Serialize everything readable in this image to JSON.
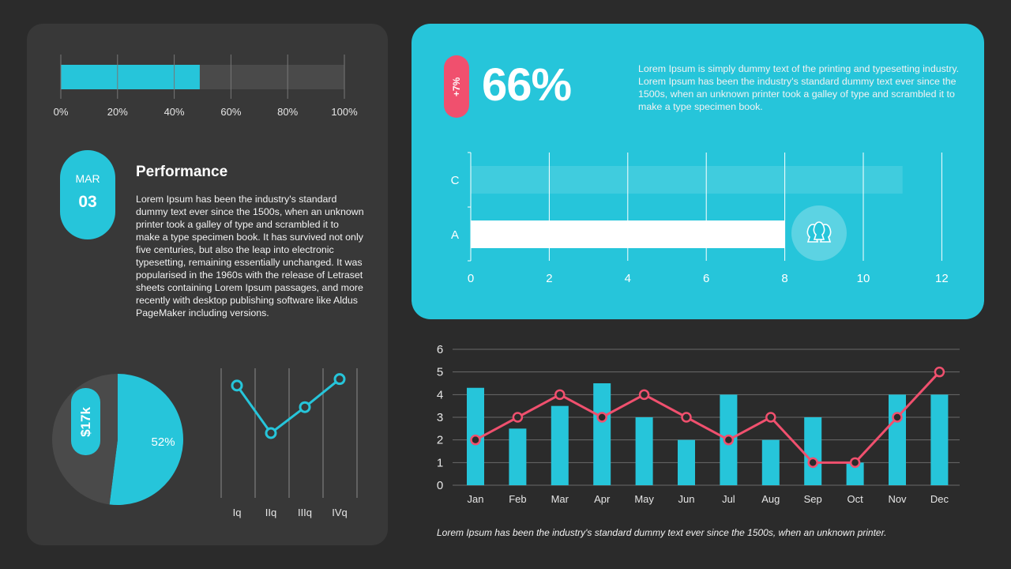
{
  "colors": {
    "accent": "#26c5da",
    "pink": "#f0506e",
    "panel": "#383838",
    "background": "#2b2b2b"
  },
  "date_badge": {
    "month": "MAR",
    "day": "03"
  },
  "performance": {
    "title": "Performance",
    "text": "Lorem Ipsum has been the industry's standard dummy text ever since the 1500s, when an unknown printer took a galley of type and scrambled it to make a type specimen book. It has survived not only five centuries, but also the leap into electronic typesetting, remaining essentially unchanged. It was popularised in the 1960s with the release of Letraset sheets containing Lorem Ipsum passages, and more recently with desktop publishing software like Aldus PageMaker including versions."
  },
  "highlight": {
    "change": "+7%",
    "value": "66%",
    "text": "Lorem Ipsum is simply dummy text of the printing and typesetting industry. Lorem Ipsum has been the industry's standard dummy text ever since the 1500s, when an unknown printer took a galley of type and scrambled it to make a type specimen book.",
    "icon": "users-group-icon"
  },
  "pie_badge": "$17k",
  "caption": "Lorem Ipsum has been the industry's standard dummy text ever since the 1500s, when an unknown printer.",
  "chart_data": [
    {
      "type": "bar",
      "orientation": "horizontal",
      "id": "progress",
      "values": [
        49
      ],
      "xlim": [
        0,
        100
      ],
      "tick_labels": [
        "0%",
        "20%",
        "40%",
        "60%",
        "80%",
        "100%"
      ],
      "grid": true
    },
    {
      "type": "pie",
      "id": "share",
      "slices": [
        {
          "label": "52%",
          "value": 52
        },
        {
          "label": "",
          "value": 48
        }
      ]
    },
    {
      "type": "line",
      "id": "quarters",
      "categories": [
        "Iq",
        "IIq",
        "IIIq",
        "IVq"
      ],
      "values": [
        5.2,
        3.0,
        4.2,
        5.5
      ],
      "grid": true
    },
    {
      "type": "bar",
      "orientation": "horizontal",
      "id": "ca",
      "categories": [
        "A",
        "C"
      ],
      "values": [
        8,
        11
      ],
      "xlim": [
        0,
        12
      ],
      "tick_labels": [
        "0",
        "2",
        "4",
        "6",
        "8",
        "10",
        "12"
      ],
      "grid": true
    },
    {
      "type": "bar",
      "id": "monthly",
      "categories": [
        "Jan",
        "Feb",
        "Mar",
        "Apr",
        "May",
        "Jun",
        "Jul",
        "Aug",
        "Sep",
        "Oct",
        "Nov",
        "Dec"
      ],
      "series": [
        {
          "type": "bar",
          "values": [
            4.3,
            2.5,
            3.5,
            4.5,
            3,
            2,
            4,
            2,
            3,
            1,
            4,
            4
          ]
        },
        {
          "type": "line",
          "values": [
            2,
            3,
            4,
            3,
            4,
            3,
            2,
            3,
            1,
            1,
            3,
            5
          ]
        }
      ],
      "ylim": [
        0,
        6
      ],
      "yticks": [
        "0",
        "1",
        "2",
        "3",
        "4",
        "5",
        "6"
      ],
      "grid": true
    }
  ]
}
